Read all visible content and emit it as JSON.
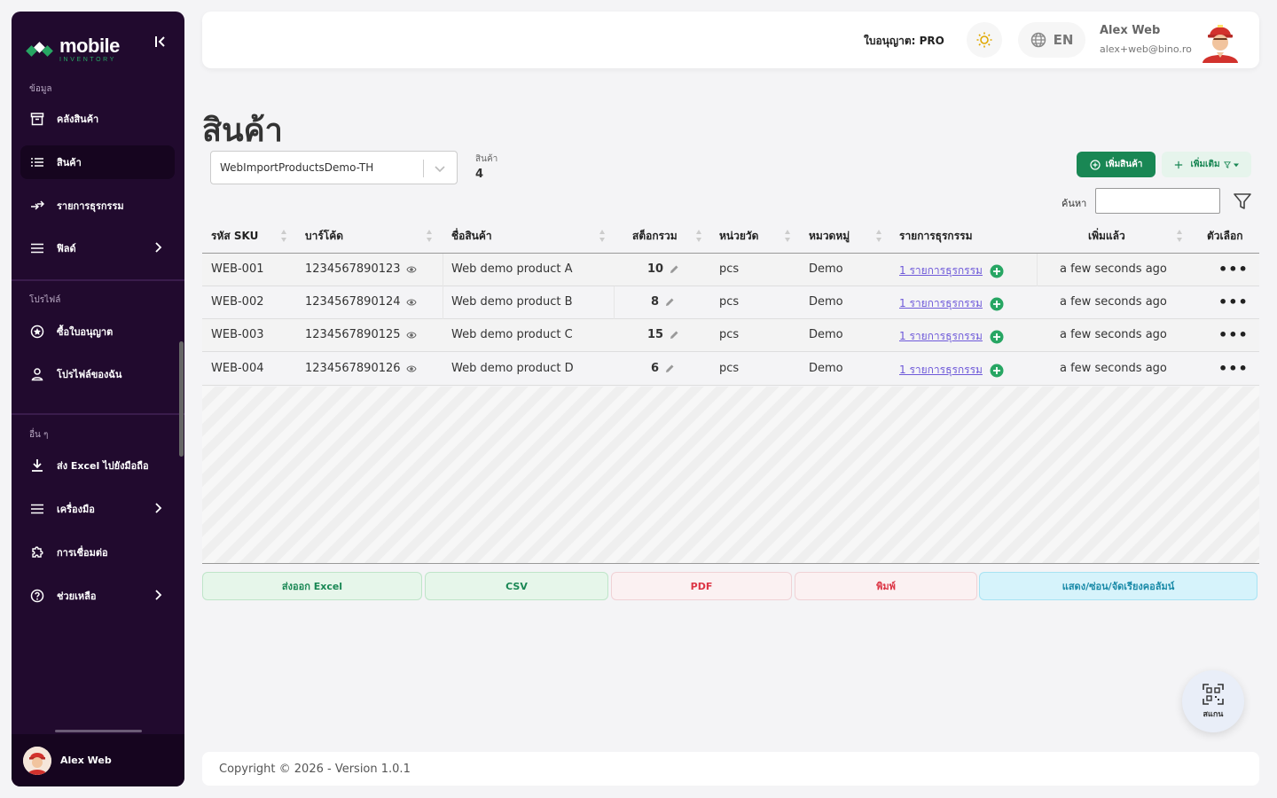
{
  "app": {
    "logo_title": "mobile",
    "logo_subtitle": "INVENTORY"
  },
  "sidebar": {
    "section_data": "ข้อมูล",
    "section_profile": "โปรไฟล์",
    "section_other": "อื่น ๆ",
    "items": [
      {
        "label": "คลังสินค้า",
        "icon": "archive-icon"
      },
      {
        "label": "สินค้า",
        "icon": "list-icon",
        "active": true
      },
      {
        "label": "รายการธุรกรรม",
        "icon": "transfer-icon"
      },
      {
        "label": "ฟิลด์",
        "icon": "menu-icon",
        "has_submenu": true
      },
      {
        "label": "ซื้อใบอนุญาต",
        "icon": "badge-icon"
      },
      {
        "label": "โปรไฟล์ของฉัน",
        "icon": "user-icon"
      },
      {
        "label": "ส่ง Excel ไปยังมือถือ",
        "icon": "download-icon"
      },
      {
        "label": "เครื่องมือ",
        "icon": "menu-icon",
        "has_submenu": true
      },
      {
        "label": "การเชื่อมต่อ",
        "icon": "puzzle-icon"
      },
      {
        "label": "ช่วยเหลือ",
        "icon": "help-icon",
        "has_submenu": true
      }
    ],
    "footer_user": "Alex Web"
  },
  "header": {
    "license": "ใบอนุญาต: PRO",
    "language": "EN",
    "user_name": "Alex Web",
    "user_email": "alex+web@bino.ro"
  },
  "page": {
    "title": "สินค้า",
    "database": "WebImportProductsDemo-TH",
    "count_label": "สินค้า",
    "count_value": "4",
    "add_button": "เพิ่มสินค้า",
    "more_button": "เพิ่มเติม",
    "search_label": "ค้นหา",
    "search_value": ""
  },
  "table": {
    "columns": [
      "รหัส SKU",
      "บาร์โค้ด",
      "ชื่อสินค้า",
      "สต็อกรวม",
      "หน่วยวัด",
      "หมวดหมู่",
      "รายการธุรกรรม",
      "เพิ่มแล้ว",
      "ตัวเลือก"
    ],
    "rows": [
      {
        "sku": "WEB-001",
        "barcode": "1234567890123",
        "name": "Web demo product A",
        "stock": "10",
        "unit": "pcs",
        "category": "Demo",
        "transactions": "1 รายการธุรกรรม",
        "added": "a few seconds ago",
        "options": "•••"
      },
      {
        "sku": "WEB-002",
        "barcode": "1234567890124",
        "name": "Web demo product B",
        "stock": "8",
        "unit": "pcs",
        "category": "Demo",
        "transactions": "1 รายการธุรกรรม",
        "added": "a few seconds ago",
        "options": "•••"
      },
      {
        "sku": "WEB-003",
        "barcode": "1234567890125",
        "name": "Web demo product C",
        "stock": "15",
        "unit": "pcs",
        "category": "Demo",
        "transactions": "1 รายการธุรกรรม",
        "added": "a few seconds ago",
        "options": "•••"
      },
      {
        "sku": "WEB-004",
        "barcode": "1234567890126",
        "name": "Web demo product D",
        "stock": "6",
        "unit": "pcs",
        "category": "Demo",
        "transactions": "1 รายการธุรกรรม",
        "added": "a few seconds ago",
        "options": "•••"
      }
    ]
  },
  "export": {
    "excel": "ส่งออก Excel",
    "csv": "CSV",
    "pdf": "PDF",
    "print": "พิมพ์",
    "columns": "แสดง/ซ่อน/จัดเรียงคอลัมน์"
  },
  "scan_label": "สแกน",
  "footer": {
    "copyright": "Copyright © 2026 - Version 1.0.1"
  },
  "colors": {
    "sidebar_bg": "#210a2e",
    "accent_green": "#198754",
    "link_purple": "#6e59d9",
    "danger": "#dc3545",
    "info": "#198aa8"
  }
}
